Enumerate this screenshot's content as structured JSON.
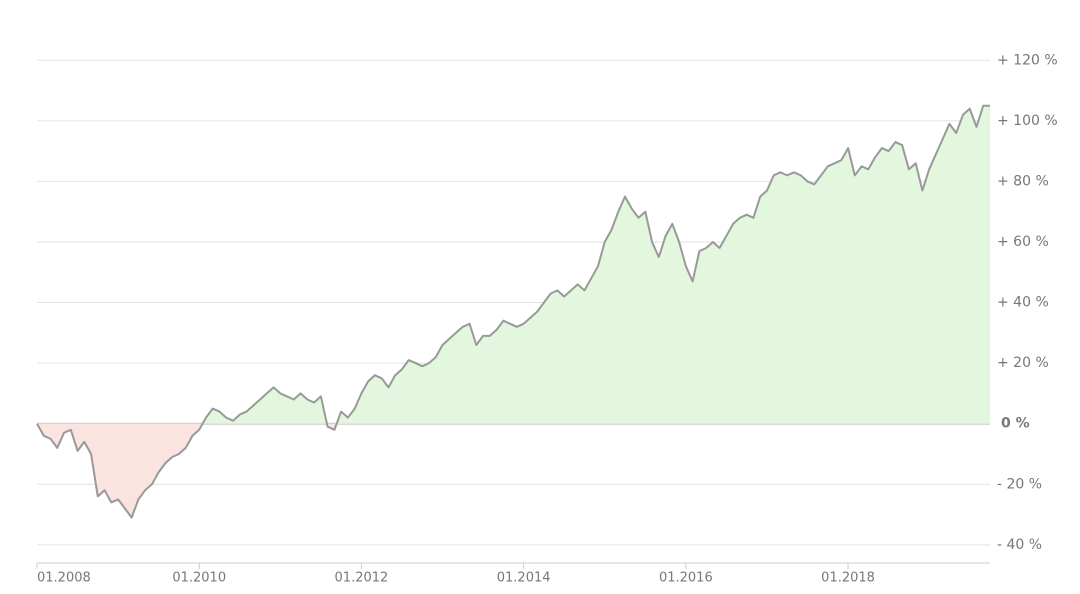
{
  "chart_data": {
    "type": "area",
    "x": [
      "01.2008",
      "02.2008",
      "03.2008",
      "04.2008",
      "05.2008",
      "06.2008",
      "07.2008",
      "08.2008",
      "09.2008",
      "10.2008",
      "11.2008",
      "12.2008",
      "01.2009",
      "02.2009",
      "03.2009",
      "04.2009",
      "05.2009",
      "06.2009",
      "07.2009",
      "08.2009",
      "09.2009",
      "10.2009",
      "11.2009",
      "12.2009",
      "01.2010",
      "02.2010",
      "03.2010",
      "04.2010",
      "05.2010",
      "06.2010",
      "07.2010",
      "08.2010",
      "09.2010",
      "10.2010",
      "11.2010",
      "12.2010",
      "01.2011",
      "02.2011",
      "03.2011",
      "04.2011",
      "05.2011",
      "06.2011",
      "07.2011",
      "08.2011",
      "09.2011",
      "10.2011",
      "11.2011",
      "12.2011",
      "01.2012",
      "02.2012",
      "03.2012",
      "04.2012",
      "05.2012",
      "06.2012",
      "07.2012",
      "08.2012",
      "09.2012",
      "10.2012",
      "11.2012",
      "12.2012",
      "01.2013",
      "02.2013",
      "03.2013",
      "04.2013",
      "05.2013",
      "06.2013",
      "07.2013",
      "08.2013",
      "09.2013",
      "10.2013",
      "11.2013",
      "12.2013",
      "01.2014",
      "02.2014",
      "03.2014",
      "04.2014",
      "05.2014",
      "06.2014",
      "07.2014",
      "08.2014",
      "09.2014",
      "10.2014",
      "11.2014",
      "12.2014",
      "01.2015",
      "02.2015",
      "03.2015",
      "04.2015",
      "05.2015",
      "06.2015",
      "07.2015",
      "08.2015",
      "09.2015",
      "10.2015",
      "11.2015",
      "12.2015",
      "01.2016",
      "02.2016",
      "03.2016",
      "04.2016",
      "05.2016",
      "06.2016",
      "07.2016",
      "08.2016",
      "09.2016",
      "10.2016",
      "11.2016",
      "12.2016",
      "01.2017",
      "02.2017",
      "03.2017",
      "04.2017",
      "05.2017",
      "06.2017",
      "07.2017",
      "08.2017",
      "09.2017",
      "10.2017",
      "11.2017",
      "12.2017",
      "01.2018",
      "02.2018",
      "03.2018",
      "04.2018",
      "05.2018",
      "06.2018",
      "07.2018",
      "08.2018",
      "09.2018",
      "10.2018",
      "11.2018",
      "12.2018",
      "01.2019",
      "02.2019",
      "03.2019",
      "04.2019",
      "05.2019",
      "06.2019",
      "07.2019",
      "08.2019",
      "09.2019",
      "10.2019"
    ],
    "values": [
      0,
      -4,
      -5,
      -8,
      -3,
      -2,
      -9,
      -6,
      -10,
      -24,
      -22,
      -26,
      -25,
      -28,
      -31,
      -25,
      -22,
      -20,
      -16,
      -13,
      -11,
      -10,
      -8,
      -4,
      -2,
      2,
      5,
      4,
      2,
      1,
      3,
      4,
      6,
      8,
      10,
      12,
      10,
      9,
      8,
      10,
      8,
      7,
      9,
      -1,
      -2,
      4,
      2,
      5,
      10,
      14,
      16,
      15,
      12,
      16,
      18,
      21,
      20,
      19,
      20,
      22,
      26,
      28,
      30,
      32,
      33,
      26,
      29,
      29,
      31,
      34,
      33,
      32,
      33,
      35,
      37,
      40,
      43,
      44,
      42,
      44,
      46,
      44,
      48,
      52,
      60,
      64,
      70,
      75,
      71,
      68,
      70,
      60,
      55,
      62,
      66,
      60,
      52,
      47,
      57,
      58,
      60,
      58,
      62,
      66,
      68,
      69,
      68,
      75,
      77,
      82,
      83,
      82,
      83,
      82,
      80,
      79,
      82,
      85,
      86,
      87,
      91,
      82,
      85,
      84,
      88,
      91,
      90,
      93,
      92,
      84,
      86,
      77,
      84,
      89,
      94,
      99,
      96,
      102,
      104,
      98,
      105,
      105
    ],
    "color": "#999999",
    "positive_fill": "#e3f7de",
    "negative_fill": "#fbe3e0",
    "xticks": [
      "01.2008",
      "01.2010",
      "01.2012",
      "01.2014",
      "01.2016",
      "01.2018"
    ],
    "ylim": [
      -46,
      130
    ],
    "yticks": [
      {
        "value": -40,
        "label": "- 40 %"
      },
      {
        "value": -20,
        "label": "- 20 %"
      },
      {
        "value": 0,
        "label": "0 %"
      },
      {
        "value": 20,
        "label": "+ 20 %"
      },
      {
        "value": 40,
        "label": "+ 40 %"
      },
      {
        "value": 60,
        "label": "+ 60 %"
      },
      {
        "value": 80,
        "label": "+ 80 %"
      },
      {
        "value": 100,
        "label": "+ 100 %"
      },
      {
        "value": 120,
        "label": "+ 120 %"
      }
    ],
    "grid": true
  }
}
